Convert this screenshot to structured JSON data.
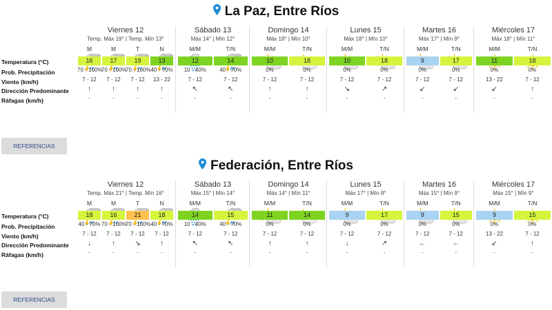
{
  "colors": {
    "green_light": "#d4f53c",
    "green_dark": "#7ed321",
    "blue": "#a9d3f2",
    "orange": "#ffc04d"
  },
  "slot_labels": {
    "M": "M",
    "T": "T",
    "N": "N",
    "MM": "M/M",
    "TN": "T/N"
  },
  "row_labels": [
    "Temperatura (°C)",
    "Prob. Precipitación",
    "Viento (km/h)",
    "Dirección Predominante",
    "Ráfagas (km/h)"
  ],
  "button_label": "REFERENCIAS",
  "sections": [
    {
      "title": "La Paz, Entre Ríos",
      "days": [
        {
          "name": "Viernes 12",
          "sub": "Temp. Máx 19° | Temp. Mín 13°",
          "slots": [
            {
              "label": "M",
              "icon": "storm",
              "temp": "16",
              "color": "green_light",
              "prob": "70 - 100%",
              "wind": "7 - 12",
              "dir": "↑",
              "gust": "-"
            },
            {
              "label": "M",
              "icon": "storm",
              "temp": "17",
              "color": "green_light",
              "prob": "70 - 100%",
              "wind": "7 - 12",
              "dir": "↑",
              "gust": "-"
            },
            {
              "label": "T",
              "icon": "storm",
              "temp": "19",
              "color": "green_light",
              "prob": "70 - 100%",
              "wind": "7 - 12",
              "dir": "↑",
              "gust": "-"
            },
            {
              "label": "N",
              "icon": "storm",
              "temp": "13",
              "color": "green_dark",
              "prob": "40 - 70%",
              "wind": "13 - 22",
              "dir": "↑",
              "gust": "-"
            }
          ]
        },
        {
          "name": "Sábado 13",
          "sub": "Máx 14° | Mín 12°",
          "slots": [
            {
              "label": "M/M",
              "icon": "rain",
              "temp": "12",
              "color": "green_dark",
              "prob": "10 - 40%",
              "wind": "7 - 12",
              "dir": "↖",
              "gust": "-"
            },
            {
              "label": "T/N",
              "icon": "storm",
              "temp": "14",
              "color": "green_dark",
              "prob": "40 - 70%",
              "wind": "7 - 12",
              "dir": "↖",
              "gust": "-"
            }
          ]
        },
        {
          "name": "Domingo 14",
          "sub": "Máx 18° | Mín 10°",
          "slots": [
            {
              "label": "M/M",
              "icon": "sun-cloud",
              "temp": "10",
              "color": "green_dark",
              "prob": "0%",
              "wind": "7 - 12",
              "dir": "↑",
              "gust": "-"
            },
            {
              "label": "T/N",
              "icon": "cloud-sun",
              "temp": "18",
              "color": "green_light",
              "prob": "0%",
              "wind": "7 - 12",
              "dir": "↑",
              "gust": "-"
            }
          ]
        },
        {
          "name": "Lunes 15",
          "sub": "Máx 18° | Mín 10°",
          "slots": [
            {
              "label": "M/M",
              "icon": "sun-cloud",
              "temp": "10",
              "color": "green_dark",
              "prob": "0%",
              "wind": "7 - 12",
              "dir": "↘",
              "gust": "-"
            },
            {
              "label": "T/N",
              "icon": "sun-cloud",
              "temp": "18",
              "color": "green_light",
              "prob": "0%",
              "wind": "7 - 12",
              "dir": "↗",
              "gust": "-"
            }
          ]
        },
        {
          "name": "Martes 16",
          "sub": "Máx 17° | Mín 9°",
          "slots": [
            {
              "label": "M/M",
              "icon": "sun-cloud",
              "temp": "9",
              "color": "blue",
              "prob": "0%",
              "wind": "7 - 12",
              "dir": "↙",
              "gust": "-"
            },
            {
              "label": "T/N",
              "icon": "sun-cloud",
              "temp": "17",
              "color": "green_light",
              "prob": "0%",
              "wind": "7 - 12",
              "dir": "↙",
              "gust": "-"
            }
          ]
        },
        {
          "name": "Miércoles 17",
          "sub": "Máx 18° | Mín 11°",
          "slots": [
            {
              "label": "M/M",
              "icon": "sun",
              "temp": "11",
              "color": "green_dark",
              "prob": "0%",
              "wind": "13 - 22",
              "dir": "↙",
              "gust": "-"
            },
            {
              "label": "T/N",
              "icon": "sun",
              "temp": "18",
              "color": "green_light",
              "prob": "0%",
              "wind": "7 - 12",
              "dir": "↑",
              "gust": "-"
            }
          ]
        }
      ]
    },
    {
      "title": "Federación, Entre Ríos",
      "days": [
        {
          "name": "Viernes 12",
          "sub": "Temp. Máx 21° | Temp. Mín 16°",
          "slots": [
            {
              "label": "M",
              "icon": "storm",
              "temp": "18",
              "color": "green_light",
              "prob": "40 - 70%",
              "wind": "7 - 12",
              "dir": "↓",
              "gust": "-"
            },
            {
              "label": "M",
              "icon": "storm",
              "temp": "16",
              "color": "green_light",
              "prob": "70 - 100%",
              "wind": "7 - 12",
              "dir": "↑",
              "gust": "-"
            },
            {
              "label": "T",
              "icon": "storm",
              "temp": "21",
              "color": "orange",
              "prob": "70 - 100%",
              "wind": "7 - 12",
              "dir": "↘",
              "gust": "-"
            },
            {
              "label": "N",
              "icon": "storm",
              "temp": "18",
              "color": "green_light",
              "prob": "40 - 70%",
              "wind": "7 - 12",
              "dir": "↑",
              "gust": "-"
            }
          ]
        },
        {
          "name": "Sábado 13",
          "sub": "Máx 15° | Mín 14°",
          "slots": [
            {
              "label": "M/M",
              "icon": "rain",
              "temp": "14",
              "color": "green_dark",
              "prob": "10 - 40%",
              "wind": "7 - 12",
              "dir": "↖",
              "gust": "-"
            },
            {
              "label": "T/N",
              "icon": "storm",
              "temp": "15",
              "color": "green_light",
              "prob": "40 - 70%",
              "wind": "7 - 12",
              "dir": "↖",
              "gust": "-"
            }
          ]
        },
        {
          "name": "Domingo 14",
          "sub": "Máx 14° | Mín 11°",
          "slots": [
            {
              "label": "M/M",
              "icon": "sun-cloud",
              "temp": "11",
              "color": "green_dark",
              "prob": "0%",
              "wind": "7 - 12",
              "dir": "↑",
              "gust": "-"
            },
            {
              "label": "T/N",
              "icon": "cloud-sun",
              "temp": "14",
              "color": "green_dark",
              "prob": "0%",
              "wind": "7 - 12",
              "dir": "↑",
              "gust": "-"
            }
          ]
        },
        {
          "name": "Lunes 15",
          "sub": "Máx 17° | Mín 9°",
          "slots": [
            {
              "label": "M/M",
              "icon": "sun-cloud",
              "temp": "9",
              "color": "blue",
              "prob": "0%",
              "wind": "7 - 12",
              "dir": "↓",
              "gust": "-"
            },
            {
              "label": "T/N",
              "icon": "sun-cloud",
              "temp": "17",
              "color": "green_light",
              "prob": "0%",
              "wind": "7 - 12",
              "dir": "↗",
              "gust": "-"
            }
          ]
        },
        {
          "name": "Martes 16",
          "sub": "Máx 15° | Mín 9°",
          "slots": [
            {
              "label": "M/M",
              "icon": "sun-cloud",
              "temp": "9",
              "color": "blue",
              "prob": "0%",
              "wind": "7 - 12",
              "dir": "←",
              "gust": "-"
            },
            {
              "label": "T/N",
              "icon": "sun-cloud",
              "temp": "15",
              "color": "green_light",
              "prob": "0%",
              "wind": "7 - 12",
              "dir": "←",
              "gust": "-"
            }
          ]
        },
        {
          "name": "Miércoles 17",
          "sub": "Máx 15° | Mín 9°",
          "slots": [
            {
              "label": "M/M",
              "icon": "sun",
              "temp": "9",
              "color": "blue",
              "prob": "0%",
              "wind": "13 - 22",
              "dir": "↙",
              "gust": "-"
            },
            {
              "label": "T/N",
              "icon": "sun",
              "temp": "15",
              "color": "green_light",
              "prob": "0%",
              "wind": "7 - 12",
              "dir": "↑",
              "gust": "-"
            }
          ]
        }
      ]
    }
  ]
}
